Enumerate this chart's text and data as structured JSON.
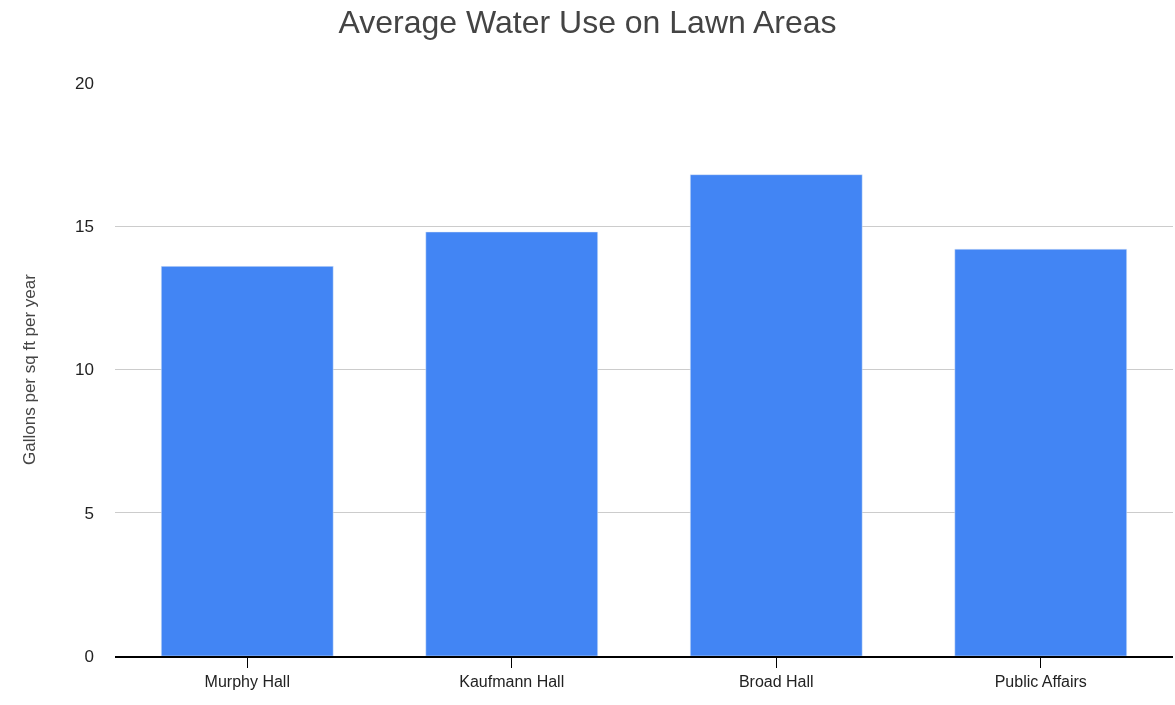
{
  "chart_data": {
    "type": "bar",
    "title": "Average Water Use on Lawn Areas",
    "ylabel": "Gallons per sq ft per year",
    "categories": [
      "Murphy Hall",
      "Kaufmann Hall",
      "Broad Hall",
      "Public Affairs"
    ],
    "values": [
      13.6,
      14.8,
      16.8,
      14.2
    ],
    "color": "#4285f4",
    "ylim": [
      0,
      20
    ],
    "yticks": [
      0,
      5,
      10,
      15,
      20
    ],
    "grid": "y",
    "legend": false
  }
}
